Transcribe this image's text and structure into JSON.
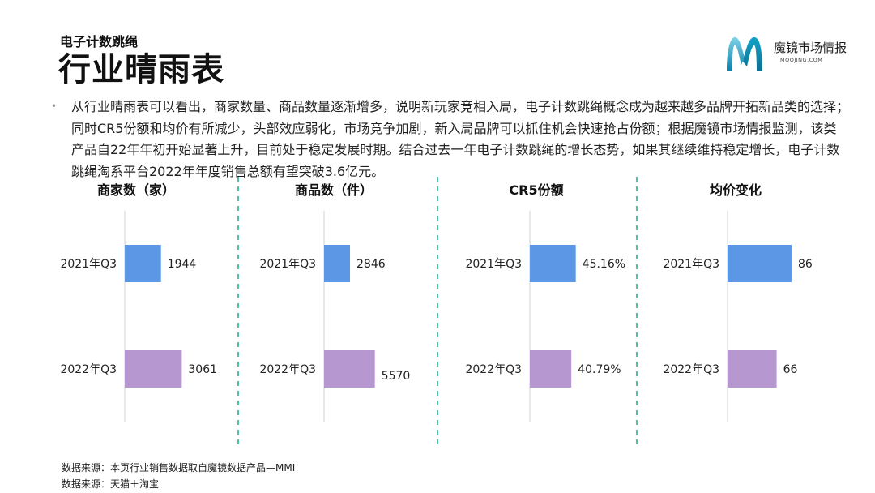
{
  "header": {
    "subtitle": "电子计数跳绳",
    "title": "行业晴雨表"
  },
  "logo": {
    "name": "魔镜市场情报",
    "url": "MOOJING.COM",
    "colors": [
      "#14a3c7",
      "#7fd3e8",
      "#0a7fa8"
    ]
  },
  "description": "从行业晴雨表可以看出，商家数量、商品数量逐渐增多，说明新玩家竞相入局，电子计数跳绳概念成为越来越多品牌开拓新品类的选择；同时CR5份额和均价有所减少，头部效应弱化，市场竞争加剧，新入局品牌可以抓住机会快速抢占份额；根据魔镜市场情报监测，该类产品自22年年初开始显著上升，目前处于稳定发展时期。结合过去一年电子计数跳绳的增长态势，如果其继续维持稳定增长，电子计数跳绳淘系平台2022年年度销售总额有望突破3.6亿元。",
  "colors": {
    "bar_2021": "#5b97e5",
    "bar_2022": "#b697d0",
    "divider": "#4fc1a6",
    "axis": "#d0d0d0"
  },
  "chart_data": [
    {
      "type": "bar",
      "orientation": "horizontal",
      "title": "商家数（家）",
      "categories": [
        "2021年Q3",
        "2022年Q3"
      ],
      "values": [
        1944,
        3061
      ],
      "value_labels": [
        "1944",
        "3061"
      ]
    },
    {
      "type": "bar",
      "orientation": "horizontal",
      "title": "商品数（件）",
      "categories": [
        "2021年Q3",
        "2022年Q3"
      ],
      "values": [
        2846,
        5570
      ],
      "value_labels": [
        "2846",
        "5570"
      ]
    },
    {
      "type": "bar",
      "orientation": "horizontal",
      "title": "CR5份额",
      "categories": [
        "2021年Q3",
        "2022年Q3"
      ],
      "values": [
        45.16,
        40.79
      ],
      "value_labels": [
        "45.16%",
        "40.79%"
      ]
    },
    {
      "type": "bar",
      "orientation": "horizontal",
      "title": "均价变化",
      "categories": [
        "2021年Q3",
        "2022年Q3"
      ],
      "values": [
        86,
        66
      ],
      "value_labels": [
        "86",
        "66"
      ]
    }
  ],
  "footer": {
    "source1": "数据来源：本页行业销售数据取自魔镜数据产品—MMI",
    "source2": "数据来源：天猫＋淘宝"
  }
}
